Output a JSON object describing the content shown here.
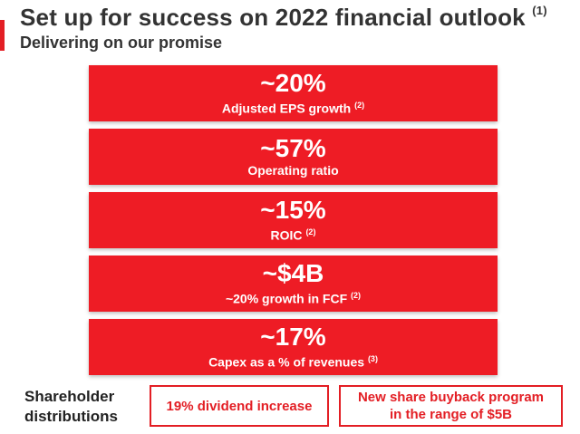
{
  "header": {
    "title": "Set up for success on 2022 financial outlook",
    "title_footnote": "(1)",
    "subtitle": "Delivering on our promise"
  },
  "metrics": [
    {
      "value": "~20%",
      "label": "Adjusted EPS growth",
      "footnote": "(2)"
    },
    {
      "value": "~57%",
      "label": "Operating ratio",
      "footnote": ""
    },
    {
      "value": "~15%",
      "label": "ROIC",
      "footnote": "(2)"
    },
    {
      "value": "~$4B",
      "label": "~20% growth in FCF",
      "footnote": "(2)"
    },
    {
      "value": "~17%",
      "label": "Capex as a % of revenues",
      "footnote": "(3)"
    }
  ],
  "distributions": {
    "label_line1": "Shareholder",
    "label_line2": "distributions",
    "dividend": "19% dividend increase",
    "buyback_line1": "New share buyback program",
    "buyback_line2": "in the range of $5B"
  },
  "colors": {
    "accent": "#e31e24",
    "box_fill": "#ee1c25",
    "text_dark": "#333333"
  }
}
